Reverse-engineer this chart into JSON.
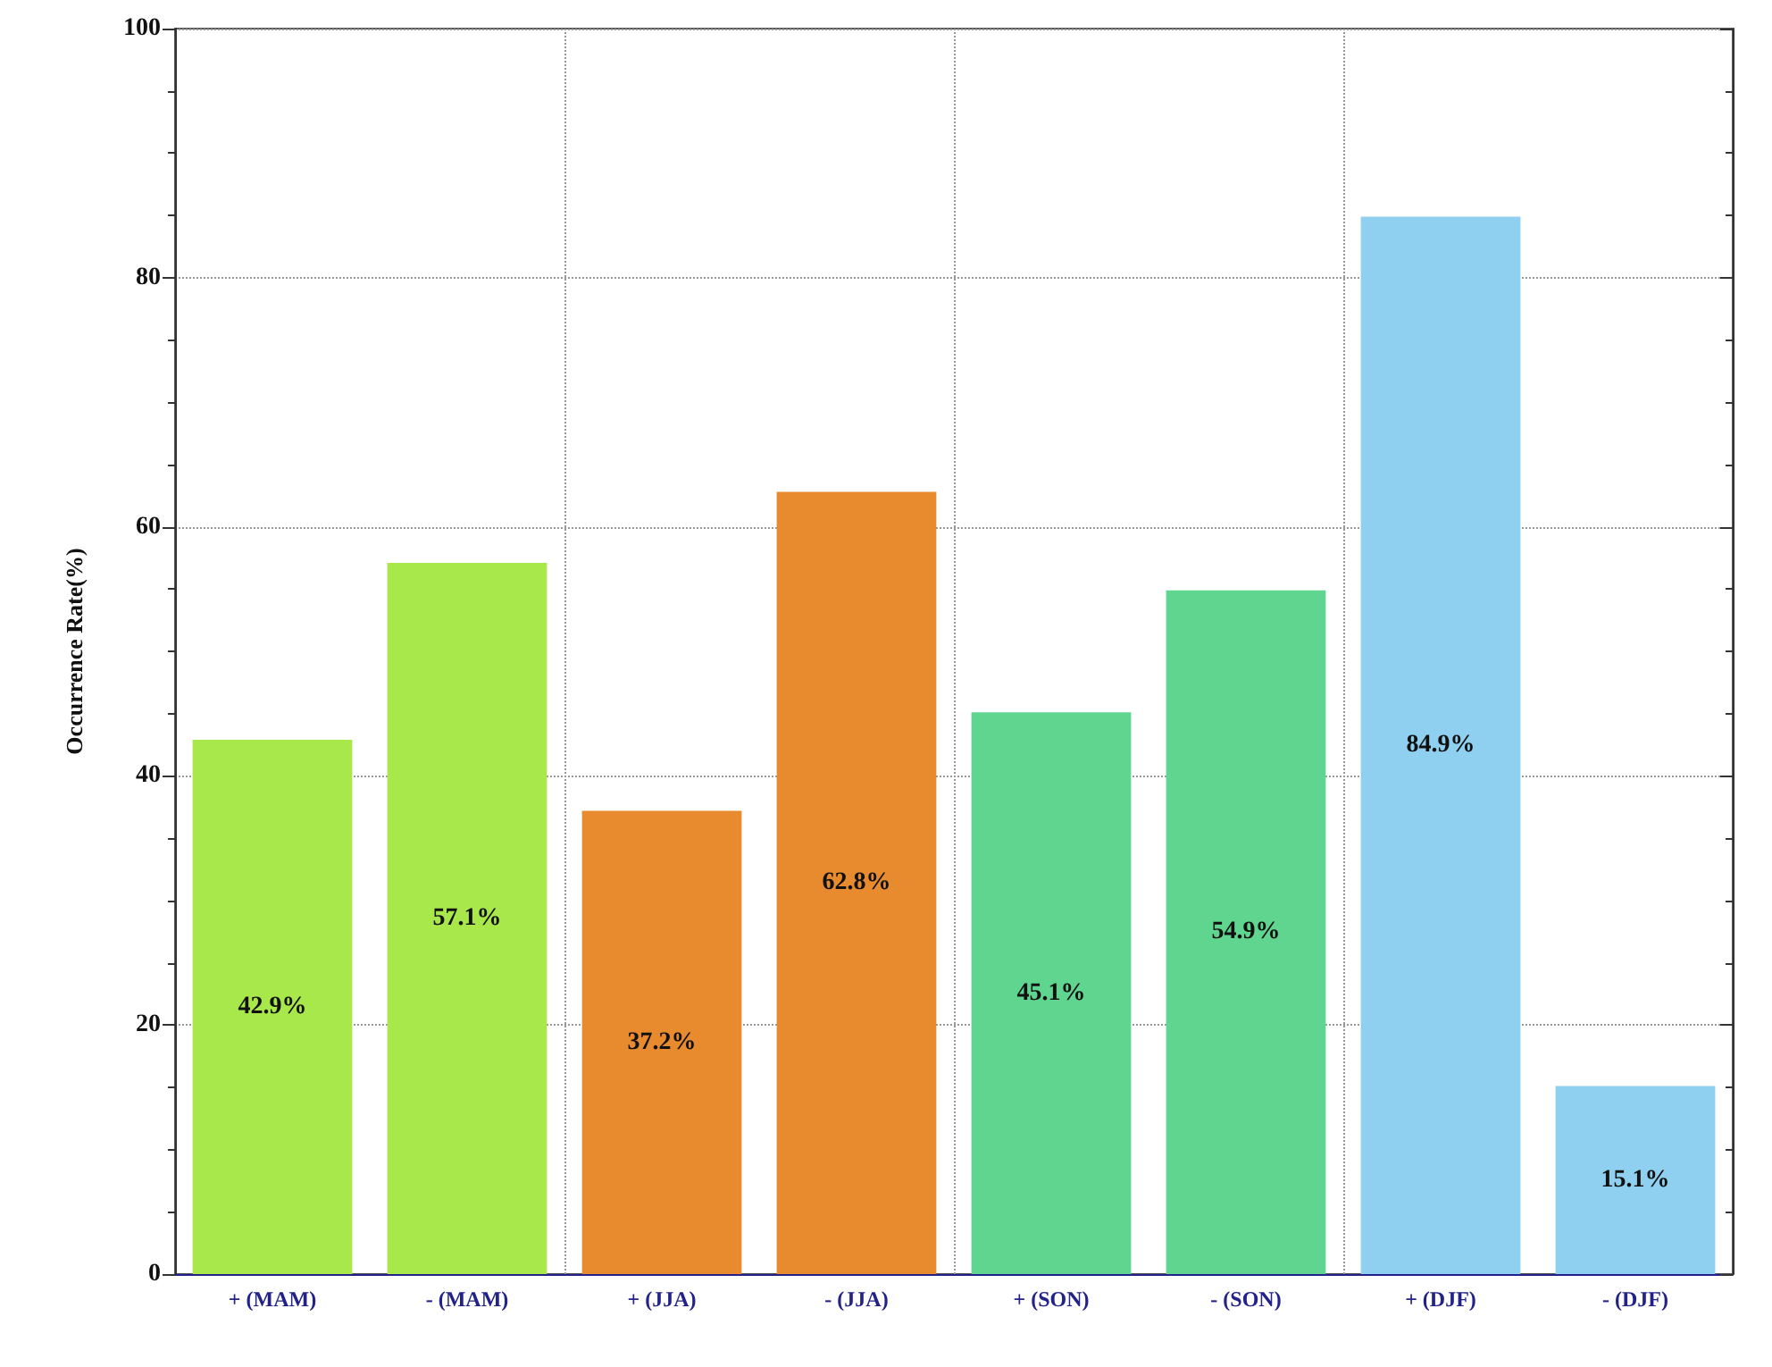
{
  "chart_data": {
    "type": "bar",
    "ylabel": "Occurrence Rate(%)",
    "categories": [
      "+ (MAM)",
      "- (MAM)",
      "+ (JJA)",
      "- (JJA)",
      "+ (SON)",
      "- (SON)",
      "+ (DJF)",
      "- (DJF)"
    ],
    "values": [
      42.9,
      57.1,
      37.2,
      62.8,
      45.1,
      54.9,
      84.9,
      15.1
    ],
    "value_labels": [
      "42.9%",
      "57.1%",
      "37.2%",
      "62.8%",
      "45.1%",
      "54.9%",
      "84.9%",
      "15.1%"
    ],
    "colors": [
      "#a8e84a",
      "#a8e84a",
      "#e88a2e",
      "#e88a2e",
      "#5fd590",
      "#5fd590",
      "#8fd0f0",
      "#8fd0f0"
    ],
    "ylim": [
      0,
      100
    ],
    "yticks": [
      0,
      20,
      40,
      60,
      80,
      100
    ],
    "grid": true
  }
}
